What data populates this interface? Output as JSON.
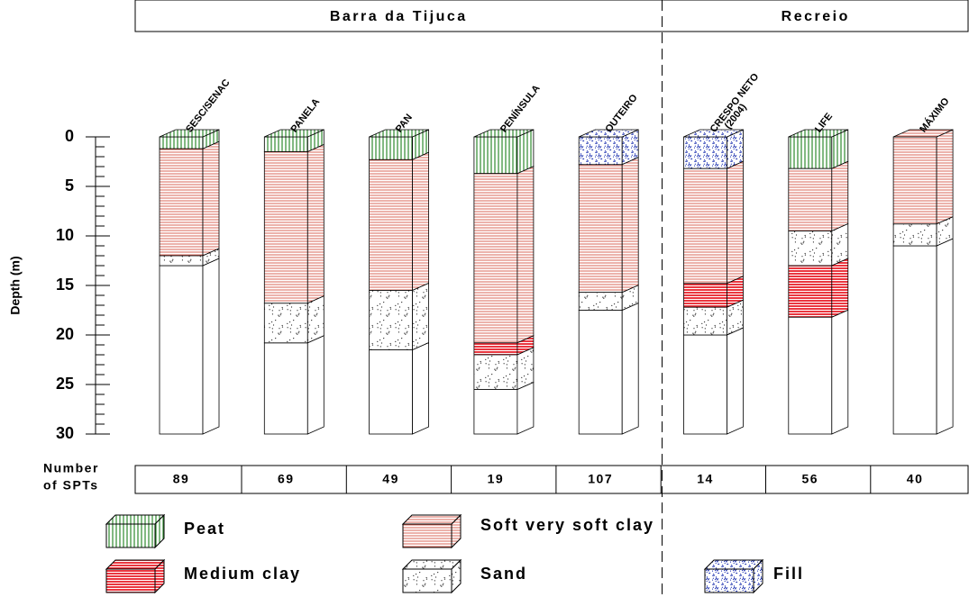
{
  "regions": [
    "Barra da Tijuca",
    "Recreio"
  ],
  "axis": {
    "label": "Depth (m)",
    "ylim": [
      0,
      30
    ],
    "yticks": [
      0,
      5,
      10,
      15,
      20,
      25,
      30
    ]
  },
  "spt_label": [
    "Number",
    "of SPTs"
  ],
  "soils": [
    {
      "name": "Peat",
      "color": "#2e8b2e"
    },
    {
      "name": "Soft very soft clay",
      "color": "#d0402e"
    },
    {
      "name": "Medium clay",
      "color": "#e8202a"
    },
    {
      "name": "Sand",
      "color": "#222222"
    },
    {
      "name": "Fill",
      "color": "#1a2fb0"
    }
  ],
  "columns": [
    {
      "name": [
        "SESC/SENAC"
      ],
      "region": 0,
      "spt": 89,
      "depth": 30,
      "layers": [
        {
          "soil": 0,
          "top": 0,
          "bottom": 1.2
        },
        {
          "soil": 1,
          "top": 1.2,
          "bottom": 12
        },
        {
          "soil": 3,
          "top": 12,
          "bottom": 13
        }
      ]
    },
    {
      "name": [
        "PANELA"
      ],
      "region": 0,
      "spt": 69,
      "depth": 30,
      "layers": [
        {
          "soil": 0,
          "top": 0,
          "bottom": 1.5
        },
        {
          "soil": 1,
          "top": 1.5,
          "bottom": 16.8
        },
        {
          "soil": 3,
          "top": 16.8,
          "bottom": 20.8
        }
      ]
    },
    {
      "name": [
        "PAN"
      ],
      "region": 0,
      "spt": 49,
      "depth": 30,
      "layers": [
        {
          "soil": 0,
          "top": 0,
          "bottom": 2.3
        },
        {
          "soil": 1,
          "top": 2.3,
          "bottom": 15.5
        },
        {
          "soil": 3,
          "top": 15.5,
          "bottom": 21.5
        }
      ]
    },
    {
      "name": [
        "PENÍNSULA"
      ],
      "region": 0,
      "spt": 19,
      "depth": 30,
      "layers": [
        {
          "soil": 0,
          "top": 0,
          "bottom": 3.7
        },
        {
          "soil": 1,
          "top": 3.7,
          "bottom": 20.8
        },
        {
          "soil": 2,
          "top": 20.8,
          "bottom": 22
        },
        {
          "soil": 3,
          "top": 22,
          "bottom": 25.5
        }
      ]
    },
    {
      "name": [
        "OUTEIRO"
      ],
      "region": 0,
      "spt": 107,
      "depth": 30,
      "layers": [
        {
          "soil": 4,
          "top": 0,
          "bottom": 2.8
        },
        {
          "soil": 1,
          "top": 2.8,
          "bottom": 15.7
        },
        {
          "soil": 3,
          "top": 15.7,
          "bottom": 17.5
        }
      ]
    },
    {
      "name": [
        "CRESPO NETO",
        "(2004)"
      ],
      "region": 1,
      "spt": 14,
      "depth": 30,
      "layers": [
        {
          "soil": 4,
          "top": 0,
          "bottom": 3.2
        },
        {
          "soil": 1,
          "top": 3.2,
          "bottom": 14.8
        },
        {
          "soil": 2,
          "top": 14.8,
          "bottom": 17.2
        },
        {
          "soil": 3,
          "top": 17.2,
          "bottom": 20
        }
      ]
    },
    {
      "name": [
        "LIFE"
      ],
      "region": 1,
      "spt": 56,
      "depth": 30,
      "layers": [
        {
          "soil": 0,
          "top": 0,
          "bottom": 3.2
        },
        {
          "soil": 1,
          "top": 3.2,
          "bottom": 9.5
        },
        {
          "soil": 3,
          "top": 9.5,
          "bottom": 13
        },
        {
          "soil": 2,
          "top": 13,
          "bottom": 18.2
        }
      ]
    },
    {
      "name": [
        "MÁXIMO"
      ],
      "region": 1,
      "spt": 40,
      "depth": 30,
      "layers": [
        {
          "soil": 1,
          "top": 0,
          "bottom": 8.8
        },
        {
          "soil": 3,
          "top": 8.8,
          "bottom": 11
        }
      ]
    }
  ]
}
